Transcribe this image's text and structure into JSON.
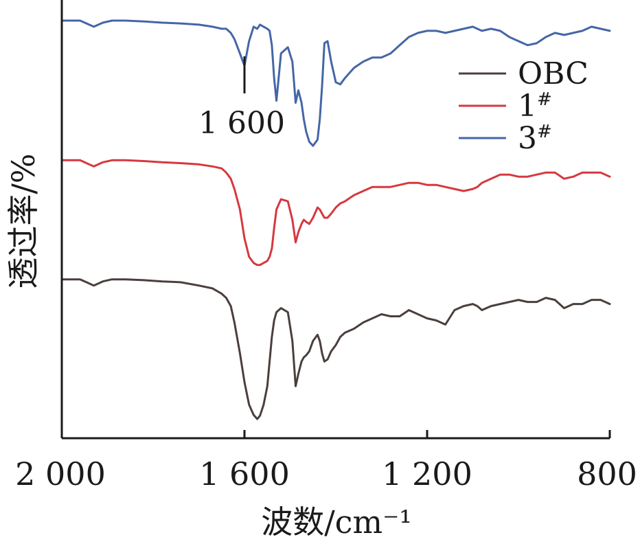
{
  "chart_data": {
    "type": "line",
    "xlabel": "波数/cm⁻¹",
    "ylabel": "透过率/%",
    "xlim": [
      2000,
      800
    ],
    "x_reversed": true,
    "ticks": [
      "2 000",
      "1 600",
      "1 200",
      "800"
    ],
    "tick_values": [
      2000,
      1600,
      1200,
      800
    ],
    "grid": false,
    "legend_position": "upper-right",
    "annotations": [
      {
        "text": "1 600",
        "x": 1600
      }
    ],
    "series": [
      {
        "name": "OBC",
        "name_base": "OBC",
        "name_sup": "",
        "color": "#4a3f3c",
        "x": [
          2000,
          1960,
          1930,
          1910,
          1890,
          1860,
          1820,
          1780,
          1740,
          1700,
          1670,
          1650,
          1640,
          1630,
          1622,
          1610,
          1600,
          1590,
          1580,
          1572,
          1566,
          1558,
          1550,
          1545,
          1540,
          1535,
          1530,
          1520,
          1505,
          1495,
          1488,
          1482,
          1475,
          1470,
          1465,
          1458,
          1450,
          1440,
          1435,
          1430,
          1425,
          1418,
          1410,
          1400,
          1390,
          1380,
          1360,
          1340,
          1320,
          1300,
          1280,
          1260,
          1240,
          1220,
          1200,
          1180,
          1160,
          1140,
          1120,
          1100,
          1090,
          1080,
          1060,
          1040,
          1020,
          1000,
          980,
          960,
          940,
          920,
          900,
          880,
          860,
          840,
          820,
          800
        ],
        "values": [
          35.0,
          35.0,
          33.5,
          34.5,
          35.0,
          35.0,
          34.8,
          34.5,
          34.3,
          33.5,
          32.8,
          31.5,
          30.5,
          28.5,
          24.5,
          17.0,
          10.0,
          4.5,
          2.0,
          1.0,
          1.8,
          4.5,
          9.0,
          15.0,
          21.0,
          25.0,
          27.0,
          28.0,
          27.0,
          20.0,
          9.0,
          12.0,
          15.0,
          16.0,
          16.5,
          17.5,
          20.0,
          21.5,
          20.0,
          17.0,
          15.0,
          15.5,
          17.5,
          19.0,
          21.0,
          22.0,
          23.0,
          24.5,
          25.5,
          26.5,
          26.0,
          26.0,
          27.5,
          26.5,
          25.5,
          25.0,
          24.0,
          27.5,
          28.5,
          29.0,
          28.5,
          27.5,
          28.5,
          29.0,
          29.5,
          30.0,
          29.5,
          29.5,
          30.5,
          30.0,
          28.0,
          29.0,
          29.0,
          30.0,
          30.0,
          29.0
        ]
      },
      {
        "name": "1#",
        "name_base": "1",
        "name_sup": "#",
        "color": "#d6383f",
        "x": [
          2000,
          1960,
          1930,
          1910,
          1890,
          1860,
          1820,
          1780,
          1740,
          1700,
          1670,
          1650,
          1640,
          1630,
          1622,
          1610,
          1600,
          1590,
          1580,
          1572,
          1566,
          1558,
          1550,
          1545,
          1540,
          1535,
          1530,
          1520,
          1505,
          1495,
          1488,
          1482,
          1475,
          1470,
          1465,
          1458,
          1450,
          1440,
          1435,
          1430,
          1425,
          1418,
          1410,
          1400,
          1390,
          1380,
          1360,
          1340,
          1320,
          1300,
          1280,
          1260,
          1240,
          1220,
          1200,
          1180,
          1160,
          1140,
          1120,
          1100,
          1090,
          1080,
          1060,
          1040,
          1020,
          1000,
          980,
          960,
          940,
          920,
          900,
          880,
          860,
          840,
          820,
          800
        ],
        "values": [
          64.0,
          64.0,
          62.5,
          63.5,
          64.0,
          64.0,
          63.8,
          63.5,
          63.3,
          63.0,
          62.5,
          62.0,
          61.0,
          59.5,
          57.0,
          52.0,
          45.0,
          40.5,
          39.0,
          38.5,
          38.5,
          39.0,
          39.5,
          40.5,
          42.5,
          47.5,
          52.0,
          54.5,
          54.0,
          49.5,
          44.0,
          46.5,
          48.5,
          49.5,
          49.0,
          48.5,
          50.0,
          52.5,
          52.0,
          51.0,
          50.0,
          50.0,
          51.0,
          52.5,
          53.5,
          54.0,
          55.5,
          56.5,
          57.5,
          57.5,
          57.5,
          58.0,
          58.5,
          58.5,
          58.0,
          58.0,
          57.5,
          57.0,
          56.5,
          57.0,
          57.5,
          58.5,
          59.5,
          60.5,
          60.5,
          60.0,
          60.0,
          60.5,
          61.0,
          61.0,
          59.5,
          60.0,
          61.0,
          61.0,
          61.0,
          60.0
        ]
      },
      {
        "name": "3#",
        "name_base": "3",
        "name_sup": "#",
        "color": "#4566a6",
        "x": [
          2000,
          1960,
          1930,
          1910,
          1890,
          1860,
          1820,
          1780,
          1740,
          1700,
          1670,
          1650,
          1640,
          1630,
          1622,
          1610,
          1600,
          1590,
          1580,
          1572,
          1566,
          1558,
          1550,
          1545,
          1540,
          1535,
          1530,
          1520,
          1505,
          1495,
          1488,
          1482,
          1475,
          1470,
          1465,
          1458,
          1450,
          1440,
          1435,
          1430,
          1425,
          1418,
          1410,
          1400,
          1390,
          1380,
          1360,
          1340,
          1320,
          1300,
          1280,
          1260,
          1240,
          1220,
          1200,
          1180,
          1160,
          1140,
          1120,
          1100,
          1090,
          1080,
          1060,
          1040,
          1020,
          1000,
          980,
          960,
          940,
          920,
          900,
          880,
          860,
          840,
          820,
          800
        ],
        "values": [
          98.0,
          98.0,
          96.5,
          97.5,
          98.0,
          98.0,
          97.8,
          97.5,
          97.3,
          97.0,
          96.5,
          96.0,
          96.0,
          95.0,
          93.5,
          90.0,
          87.0,
          93.0,
          96.5,
          96.0,
          97.0,
          96.5,
          96.0,
          95.5,
          92.0,
          84.0,
          78.5,
          90.0,
          91.5,
          88.0,
          78.0,
          81.0,
          78.0,
          74.0,
          71.0,
          68.5,
          67.5,
          69.0,
          74.0,
          82.0,
          92.5,
          93.0,
          88.0,
          83.0,
          82.5,
          84.0,
          86.5,
          88.0,
          89.0,
          89.0,
          90.0,
          92.0,
          94.0,
          95.0,
          95.5,
          95.5,
          95.0,
          95.5,
          96.0,
          96.5,
          96.0,
          95.5,
          96.0,
          95.5,
          94.0,
          93.0,
          92.0,
          92.5,
          94.0,
          95.0,
          94.5,
          95.0,
          95.5,
          96.5,
          96.0,
          95.5
        ]
      }
    ]
  }
}
